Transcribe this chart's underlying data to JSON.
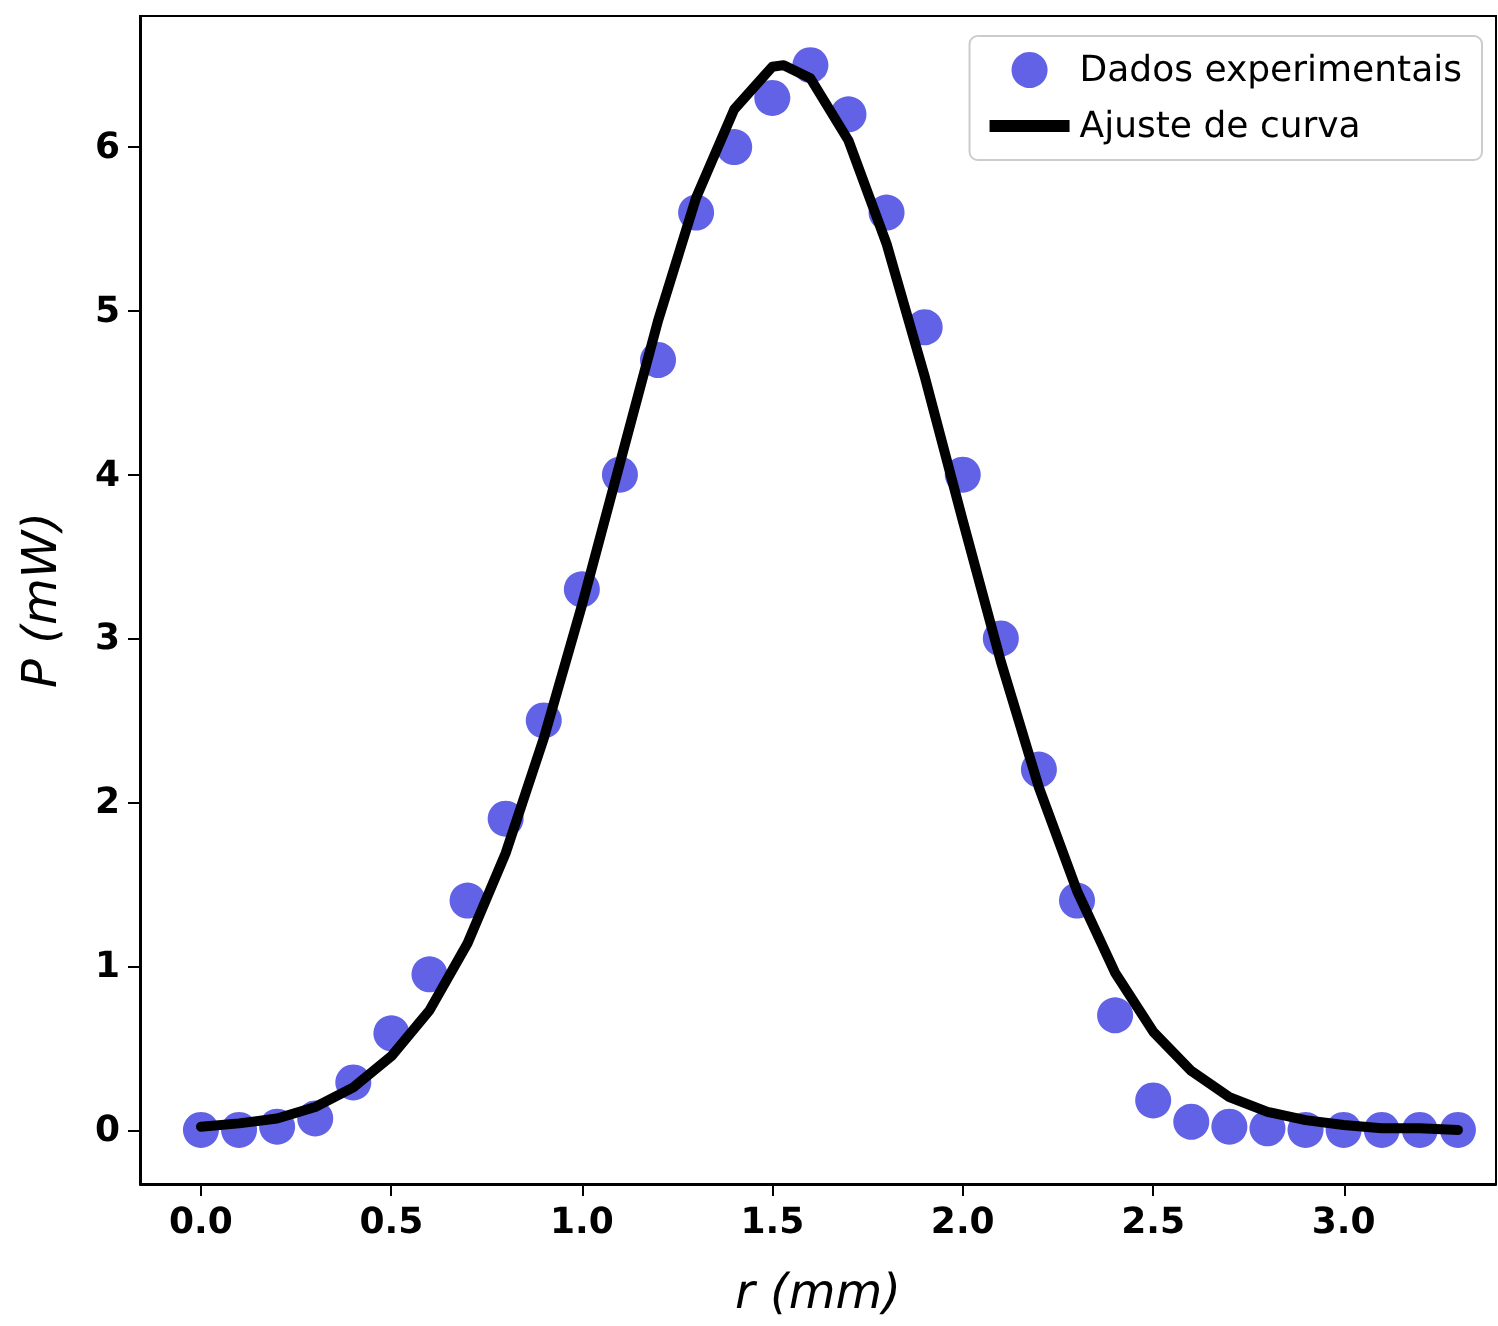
{
  "chart_data": {
    "type": "scatter",
    "xlabel": "r (mm)",
    "ylabel": "P (mW)",
    "xlim": [
      -0.16,
      3.4
    ],
    "ylim": [
      -0.33,
      6.8
    ],
    "xticks": [
      {
        "value": 0,
        "label": "0.0"
      },
      {
        "value": 0.5,
        "label": "0.5"
      },
      {
        "value": 1,
        "label": "1.0"
      },
      {
        "value": 1.5,
        "label": "1.5"
      },
      {
        "value": 2,
        "label": "2.0"
      },
      {
        "value": 2.5,
        "label": "2.5"
      },
      {
        "value": 3,
        "label": "3.0"
      }
    ],
    "yticks": [
      0,
      1,
      2,
      3,
      4,
      5,
      6
    ],
    "grid": false,
    "legend": "top right",
    "series": [
      {
        "name": "Dados experimentais",
        "marker": "circle",
        "color": "#6262e6",
        "x": [
          0,
          0.1,
          0.2,
          0.3,
          0.4,
          0.5,
          0.6,
          0.7,
          0.8,
          0.9,
          1.0,
          1.1,
          1.2,
          1.3,
          1.4,
          1.5,
          1.6,
          1.7,
          1.8,
          1.9,
          2.0,
          2.1,
          2.2,
          2.3,
          2.4,
          2.5,
          2.6,
          2.7,
          2.8,
          2.9,
          3.0,
          3.1,
          3.2,
          3.3
        ],
        "values": [
          0,
          0,
          0.02,
          0.07,
          0.29,
          0.59,
          0.95,
          1.4,
          1.9,
          2.5,
          3.3,
          4.0,
          4.7,
          5.6,
          6.0,
          6.3,
          6.5,
          6.2,
          5.6,
          4.9,
          4.0,
          3.0,
          2.2,
          1.4,
          0.7,
          0.18,
          0.05,
          0.02,
          0.01,
          0,
          0,
          0,
          0,
          0
        ]
      },
      {
        "name": "Ajuste de curva",
        "type": "line",
        "marker": "none",
        "line_style": "solid",
        "color": "#000000",
        "x": [
          0,
          0.1,
          0.2,
          0.3,
          0.4,
          0.5,
          0.6,
          0.7,
          0.8,
          0.9,
          1.0,
          1.1,
          1.2,
          1.3,
          1.4,
          1.5,
          1.53,
          1.6,
          1.7,
          1.8,
          1.9,
          2.0,
          2.1,
          2.2,
          2.3,
          2.4,
          2.5,
          2.6,
          2.7,
          2.8,
          2.9,
          3.0,
          3.1,
          3.2,
          3.3
        ],
        "values": [
          0.02,
          0.04,
          0.07,
          0.14,
          0.26,
          0.45,
          0.73,
          1.14,
          1.69,
          2.39,
          3.2,
          4.07,
          4.94,
          5.69,
          6.23,
          6.49,
          6.5,
          6.42,
          6.04,
          5.41,
          4.6,
          3.72,
          2.86,
          2.09,
          1.46,
          0.96,
          0.6,
          0.36,
          0.2,
          0.11,
          0.06,
          0.03,
          0.01,
          0.01,
          0
        ]
      }
    ]
  }
}
